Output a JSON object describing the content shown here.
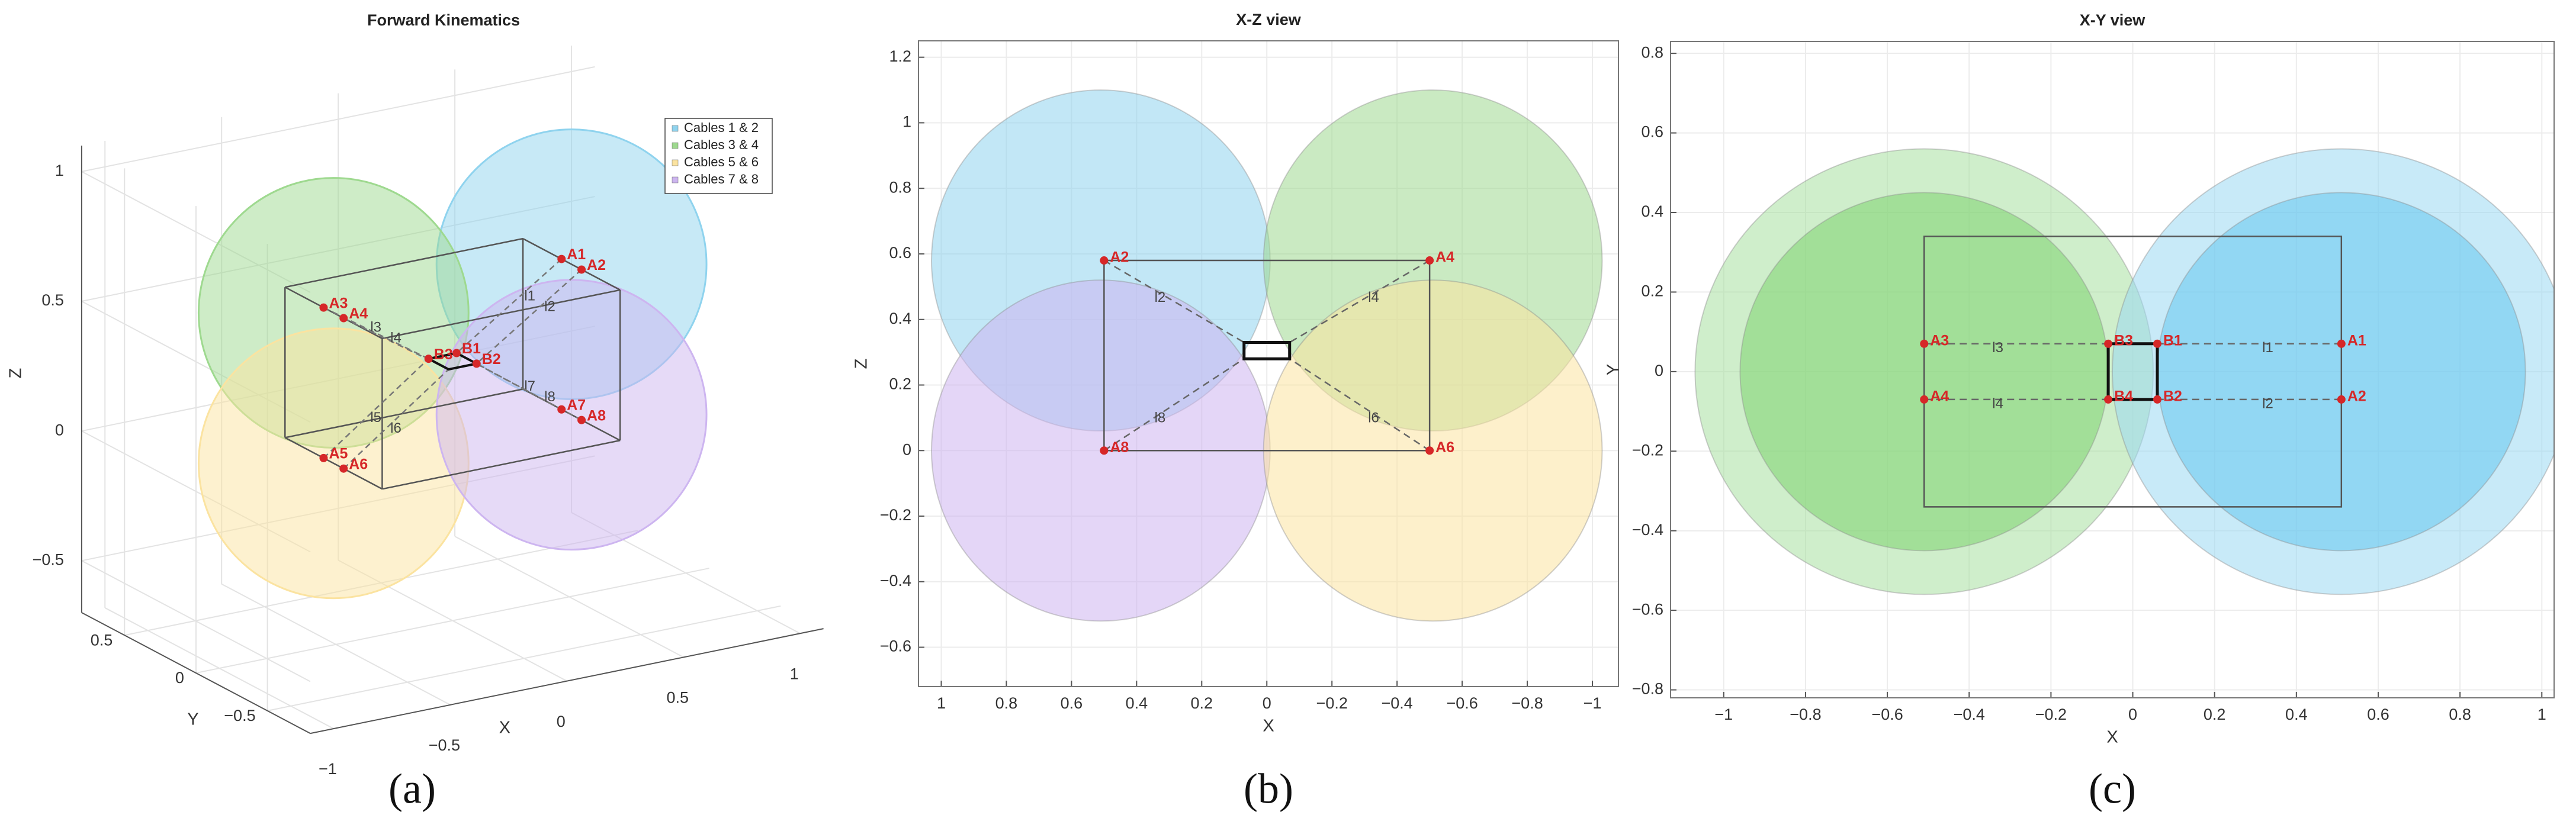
{
  "chart_data": [
    {
      "type": "scatter3d",
      "title": "Forward Kinematics",
      "caption": "(a)",
      "xlabel": "X",
      "ylabel": "Y",
      "zlabel": "Z",
      "xlim": [
        -1.1,
        1.1
      ],
      "ylim": [
        -0.8,
        0.8
      ],
      "zlim": [
        -0.7,
        1.1
      ],
      "xticks": [
        {
          "value": -1,
          "label": "−1"
        },
        {
          "value": -0.5,
          "label": "−0.5"
        },
        0,
        0.5,
        1
      ],
      "yticks": [
        {
          "value": -0.5,
          "label": "−0.5"
        },
        0,
        0.5
      ],
      "zticks": [
        {
          "value": -0.5,
          "label": "−0.5"
        },
        0,
        0.5,
        1
      ],
      "grid": true,
      "legend": "upper right",
      "series": [
        {
          "name": "Cables 1 & 2",
          "color": "#8fd3ee",
          "center": [
            0.51,
            0,
            0.58
          ],
          "radius": 0.52
        },
        {
          "name": "Cables 3 & 4",
          "color": "#9ed98f",
          "center": [
            -0.51,
            0,
            0.58
          ],
          "radius": 0.52
        },
        {
          "name": "Cables 5 & 6",
          "color": "#fbe3a0",
          "center": [
            -0.51,
            0,
            0
          ],
          "radius": 0.52
        },
        {
          "name": "Cables 7 & 8",
          "color": "#cdb5f0",
          "center": [
            0.51,
            0,
            0
          ],
          "radius": 0.52
        }
      ],
      "frame": {
        "x": [
          -0.51,
          0.51
        ],
        "y": [
          -0.34,
          0.34
        ],
        "z": [
          0,
          0.58
        ]
      },
      "platform": {
        "x": [
          0.06,
          0.06,
          -0.06,
          -0.06
        ],
        "y": [
          0.07,
          -0.07,
          -0.07,
          0.07
        ],
        "z": [
          0.3,
          0.3,
          0.3,
          0.3
        ]
      },
      "points": {
        "color": "#d62728",
        "names": [
          "A1",
          "A2",
          "A3",
          "A4",
          "A5",
          "A6",
          "A7",
          "A8",
          "B1",
          "B2",
          "B3"
        ],
        "x": [
          0.51,
          0.51,
          -0.51,
          -0.51,
          -0.51,
          -0.51,
          0.51,
          0.51,
          0.06,
          0.06,
          -0.06
        ],
        "y": [
          0.07,
          -0.07,
          0.07,
          -0.07,
          0.07,
          -0.07,
          0.07,
          -0.07,
          0.07,
          -0.07,
          0.07
        ],
        "z": [
          0.58,
          0.58,
          0.58,
          0.58,
          0,
          0,
          0,
          0,
          0.3,
          0.3,
          0.3
        ]
      },
      "cables": {
        "names": [
          "l1",
          "l2",
          "l3",
          "l4",
          "l5",
          "l6",
          "l7",
          "l8"
        ],
        "x": [
          [
            0.51,
            0.06
          ],
          [
            0.51,
            0.06
          ],
          [
            -0.51,
            -0.06
          ],
          [
            -0.51,
            -0.06
          ],
          [
            -0.51,
            -0.06
          ],
          [
            -0.51,
            -0.06
          ],
          [
            0.51,
            0.06
          ],
          [
            0.51,
            0.06
          ]
        ],
        "y": [
          [
            0.07,
            0.07
          ],
          [
            -0.07,
            -0.07
          ],
          [
            0.07,
            0.07
          ],
          [
            -0.07,
            -0.07
          ],
          [
            0.07,
            0.07
          ],
          [
            -0.07,
            -0.07
          ],
          [
            0.07,
            0.07
          ],
          [
            -0.07,
            -0.07
          ]
        ],
        "z": [
          [
            0.58,
            0.3
          ],
          [
            0.58,
            0.3
          ],
          [
            0.58,
            0.3
          ],
          [
            0.58,
            0.3
          ],
          [
            0,
            0.3
          ],
          [
            0,
            0.3
          ],
          [
            0,
            0.3
          ],
          [
            0,
            0.3
          ]
        ]
      }
    },
    {
      "type": "scatter",
      "title": "X-Z view",
      "caption": "(b)",
      "xlabel": "X",
      "ylabel": "Z",
      "xlim": [
        1.07,
        -1.08
      ],
      "ylim": [
        -0.72,
        1.25
      ],
      "xticks": [
        1,
        0.8,
        0.6,
        0.4,
        0.2,
        0,
        {
          "value": -0.2,
          "label": "−0.2"
        },
        {
          "value": -0.4,
          "label": "−0.4"
        },
        {
          "value": -0.6,
          "label": "−0.6"
        },
        {
          "value": -0.8,
          "label": "−0.8"
        },
        {
          "value": -1,
          "label": "−1"
        }
      ],
      "yticks": [
        {
          "value": -0.6,
          "label": "−0.6"
        },
        {
          "value": -0.4,
          "label": "−0.4"
        },
        {
          "value": -0.2,
          "label": "−0.2"
        },
        0,
        0.2,
        0.4,
        0.6,
        0.8,
        1,
        1.2
      ],
      "grid": true,
      "spheres": [
        {
          "color": "#8fd3ee",
          "center": [
            0.51,
            0.58
          ],
          "radius": 0.52
        },
        {
          "color": "#9ed98f",
          "center": [
            -0.51,
            0.58
          ],
          "radius": 0.52
        },
        {
          "color": "#cdb5f0",
          "center": [
            0.51,
            0
          ],
          "radius": 0.52
        },
        {
          "color": "#fbe3a0",
          "center": [
            -0.51,
            0
          ],
          "radius": 0.52
        }
      ],
      "frame": {
        "x": [
          0.5,
          -0.5,
          -0.5,
          0.5
        ],
        "y": [
          0.58,
          0.58,
          0,
          0
        ]
      },
      "platform": {
        "x": [
          0.07,
          -0.07,
          -0.07,
          0.07
        ],
        "y": [
          0.33,
          0.33,
          0.28,
          0.28
        ]
      },
      "points": {
        "color": "#d62728",
        "names": [
          "A2",
          "A4",
          "A8",
          "A6"
        ],
        "x": [
          0.5,
          -0.5,
          0.5,
          -0.5
        ],
        "y": [
          0.58,
          0.58,
          0,
          0
        ]
      },
      "cables": {
        "names": [
          "l2",
          "l4",
          "l8",
          "l6"
        ],
        "x": [
          [
            0.5,
            0.07
          ],
          [
            -0.5,
            -0.07
          ],
          [
            0.5,
            0.07
          ],
          [
            -0.5,
            -0.07
          ]
        ],
        "y": [
          [
            0.58,
            0.33
          ],
          [
            0.58,
            0.33
          ],
          [
            0,
            0.28
          ],
          [
            0,
            0.28
          ]
        ]
      }
    },
    {
      "type": "scatter",
      "title": "X-Y view",
      "caption": "(c)",
      "xlabel": "X",
      "ylabel": "Y",
      "xlim": [
        -1.13,
        1.03
      ],
      "ylim": [
        -0.82,
        0.83
      ],
      "xticks": [
        {
          "value": -1,
          "label": "−1"
        },
        {
          "value": -0.8,
          "label": "−0.8"
        },
        {
          "value": -0.6,
          "label": "−0.6"
        },
        {
          "value": -0.4,
          "label": "−0.4"
        },
        {
          "value": -0.2,
          "label": "−0.2"
        },
        0,
        0.2,
        0.4,
        0.6,
        0.8,
        1
      ],
      "yticks": [
        {
          "value": -0.8,
          "label": "−0.8"
        },
        {
          "value": -0.6,
          "label": "−0.6"
        },
        {
          "value": -0.4,
          "label": "−0.4"
        },
        {
          "value": -0.2,
          "label": "−0.2"
        },
        0,
        0.2,
        0.4,
        0.6,
        0.8
      ],
      "grid": true,
      "spheres": [
        {
          "color": "#a8e0a0",
          "center": [
            -0.51,
            0
          ],
          "radius": 0.56
        },
        {
          "color": "#9ad8f2",
          "center": [
            0.51,
            0
          ],
          "radius": 0.56
        },
        {
          "color": "#7dd36f",
          "center": [
            -0.51,
            0
          ],
          "radius": 0.45
        },
        {
          "color": "#66c6ee",
          "center": [
            0.51,
            0
          ],
          "radius": 0.45
        }
      ],
      "frame": {
        "x": [
          -0.51,
          0.51,
          0.51,
          -0.51
        ],
        "y": [
          0.34,
          0.34,
          -0.34,
          -0.34
        ]
      },
      "platform": {
        "x": [
          -0.06,
          0.06,
          0.06,
          -0.06
        ],
        "y": [
          0.07,
          0.07,
          -0.07,
          -0.07
        ]
      },
      "points": {
        "color": "#d62728",
        "names": [
          "A1",
          "A2",
          "A3",
          "A4",
          "B1",
          "B2",
          "B3",
          "B4"
        ],
        "x": [
          0.51,
          0.51,
          -0.51,
          -0.51,
          0.06,
          0.06,
          -0.06,
          -0.06
        ],
        "y": [
          0.07,
          -0.07,
          0.07,
          -0.07,
          0.07,
          -0.07,
          0.07,
          -0.07
        ]
      },
      "cables": {
        "names": [
          "l1",
          "l2",
          "l3",
          "l4"
        ],
        "x": [
          [
            0.51,
            0.06
          ],
          [
            0.51,
            0.06
          ],
          [
            -0.51,
            -0.06
          ],
          [
            -0.51,
            -0.06
          ]
        ],
        "y": [
          [
            0.07,
            0.07
          ],
          [
            -0.07,
            -0.07
          ],
          [
            0.07,
            0.07
          ],
          [
            -0.07,
            -0.07
          ]
        ]
      }
    }
  ]
}
